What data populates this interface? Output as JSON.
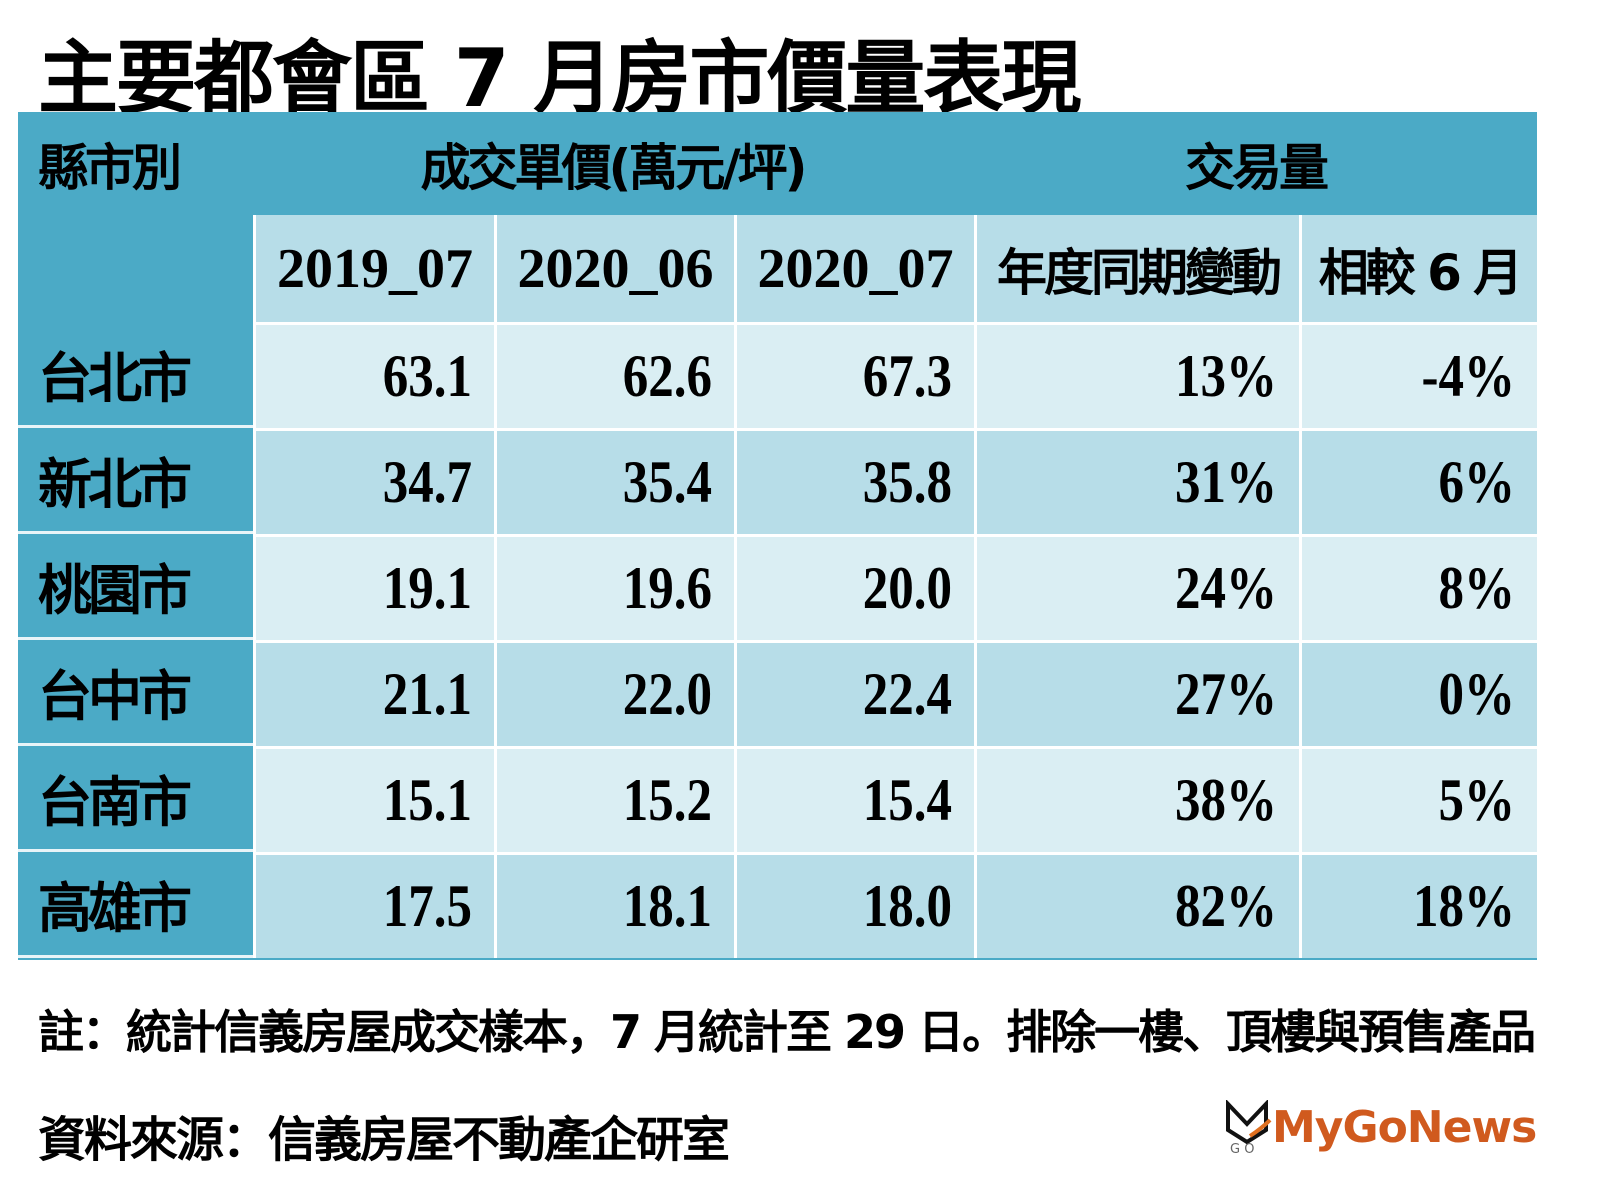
{
  "title": "主要都會區 7 月房市價量表現",
  "chart_data": {
    "type": "table",
    "title": "主要都會區 7 月房市價量表現",
    "header": {
      "city_label": "縣市別",
      "price_group": "成交單價(萬元/坪)",
      "volume_group": "交易量"
    },
    "columns": [
      "2019_07",
      "2020_06",
      "2020_07",
      "年度同期變動",
      "相較 6 月"
    ],
    "rows": [
      {
        "city": "台北市",
        "values": [
          "63.1",
          "62.6",
          "67.3",
          "13%",
          "-4%"
        ]
      },
      {
        "city": "新北市",
        "values": [
          "34.7",
          "35.4",
          "35.8",
          "31%",
          "6%"
        ]
      },
      {
        "city": "桃園市",
        "values": [
          "19.1",
          "19.6",
          "20.0",
          "24%",
          "8%"
        ]
      },
      {
        "city": "台中市",
        "values": [
          "21.1",
          "22.0",
          "22.4",
          "27%",
          "0%"
        ]
      },
      {
        "city": "台南市",
        "values": [
          "15.1",
          "15.2",
          "15.4",
          "38%",
          "5%"
        ]
      },
      {
        "city": "高雄市",
        "values": [
          "17.5",
          "18.1",
          "18.0",
          "82%",
          "18%"
        ]
      }
    ]
  },
  "note": "註：統計信義房屋成交樣本，7 月統計至 29 日。排除一樓、頂樓與預售產品",
  "source": "資料來源：信義房屋不動產企研室",
  "logo": {
    "text": "MyGoNews",
    "mark": "GO"
  },
  "colors": {
    "header": "#4BAAC6",
    "subheader": "#B7DDE8",
    "row_light": "#DAEEF3",
    "row_dark": "#B7DDE8",
    "logo": "#D05A1E"
  }
}
